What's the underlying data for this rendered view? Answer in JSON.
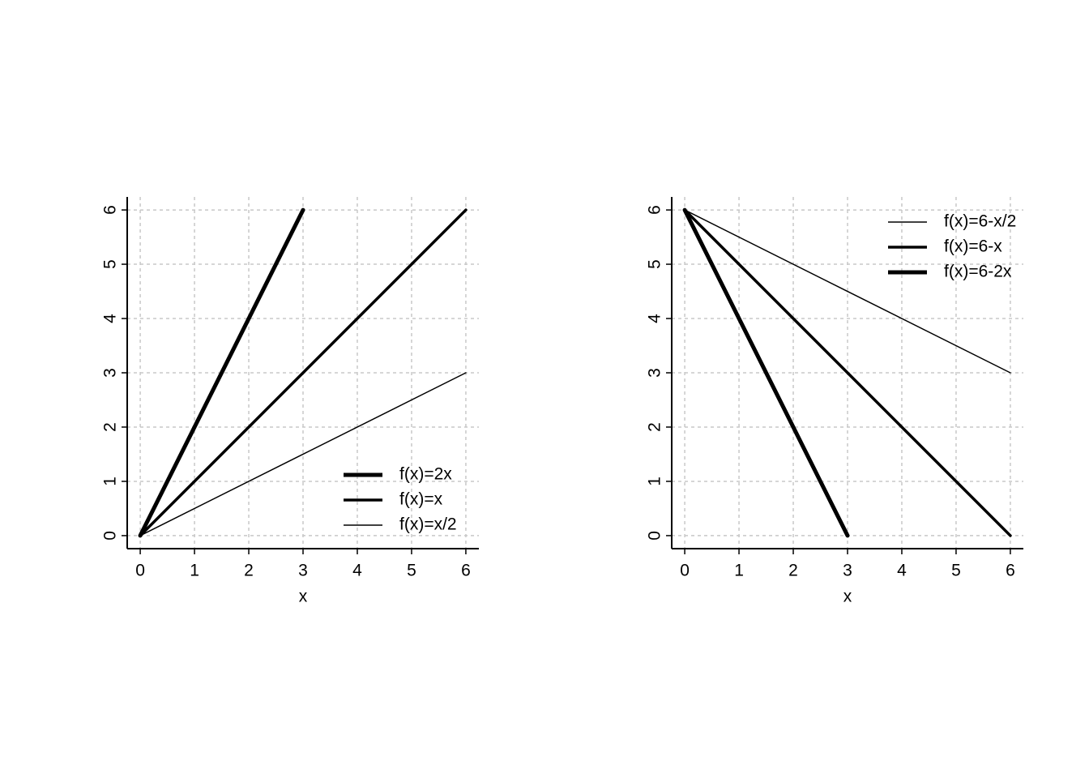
{
  "chart_data": [
    {
      "type": "line",
      "xlabel": "x",
      "x": [
        0,
        3,
        6
      ],
      "series": [
        {
          "name": "f(x)=2x",
          "color": "#000000",
          "linewidth": 5,
          "values": [
            0,
            6,
            null
          ]
        },
        {
          "name": "f(x)=x",
          "color": "#000000",
          "linewidth": 3.5,
          "values": [
            0,
            3,
            6
          ]
        },
        {
          "name": "f(x)=x/2",
          "color": "#000000",
          "linewidth": 1.5,
          "values": [
            0,
            1.5,
            3
          ]
        }
      ],
      "xlim": [
        -0.24,
        6.24
      ],
      "ylim": [
        -0.24,
        6.24
      ],
      "xticks": [
        0,
        1,
        2,
        3,
        4,
        5,
        6
      ],
      "yticks": [
        0,
        1,
        2,
        3,
        4,
        5,
        6
      ],
      "grid": true,
      "legend": "lower right"
    },
    {
      "type": "line",
      "xlabel": "x",
      "x": [
        0,
        3,
        6
      ],
      "series": [
        {
          "name": "f(x)=6-x/2",
          "color": "#000000",
          "linewidth": 1.5,
          "values": [
            6,
            4.5,
            3
          ]
        },
        {
          "name": "f(x)=6-x",
          "color": "#000000",
          "linewidth": 3.5,
          "values": [
            6,
            3,
            0
          ]
        },
        {
          "name": "f(x)=6-2x",
          "color": "#000000",
          "linewidth": 5,
          "values": [
            6,
            0,
            null
          ]
        }
      ],
      "xlim": [
        -0.24,
        6.24
      ],
      "ylim": [
        -0.24,
        6.24
      ],
      "xticks": [
        0,
        1,
        2,
        3,
        4,
        5,
        6
      ],
      "yticks": [
        0,
        1,
        2,
        3,
        4,
        5,
        6
      ],
      "grid": true,
      "legend": "upper right"
    }
  ]
}
